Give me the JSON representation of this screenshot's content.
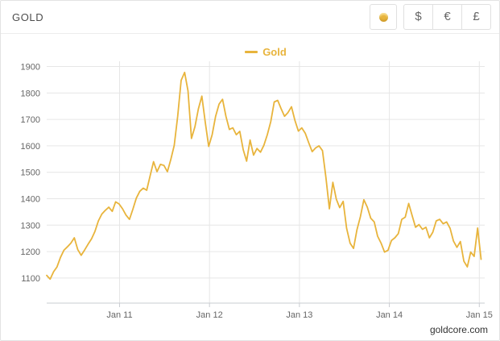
{
  "header": {
    "title": "GOLD",
    "currencies": [
      {
        "label": "$"
      },
      {
        "label": "€"
      },
      {
        "label": "£"
      }
    ]
  },
  "legend": {
    "label": "Gold"
  },
  "credit": "goldcore.com",
  "colors": {
    "gold": "#e8b43c",
    "grid": "#e6e6e6",
    "axis_label": "#666666",
    "axis_line": "#c9ccd1",
    "btn_border": "#e0e0e0"
  },
  "chart_data": {
    "type": "line",
    "title": "",
    "xlabel": "",
    "ylabel": "",
    "grid": true,
    "legend_position": "top-center",
    "xlim": [
      2010.19,
      2015.06
    ],
    "ylim": [
      1005,
      1920
    ],
    "y_ticks": [
      1100,
      1200,
      1300,
      1400,
      1500,
      1600,
      1700,
      1800,
      1900
    ],
    "x_ticks": [
      {
        "value": 2011,
        "label": "Jan 11"
      },
      {
        "value": 2012,
        "label": "Jan 12"
      },
      {
        "value": 2013,
        "label": "Jan 13"
      },
      {
        "value": 2014,
        "label": "Jan 14"
      },
      {
        "value": 2015,
        "label": "Jan 15"
      }
    ],
    "series": [
      {
        "name": "Gold",
        "color": "#e8b43c",
        "x_start": 2010.19,
        "x_step_years": 0.03833,
        "values": [
          1110,
          1096,
          1124,
          1142,
          1178,
          1205,
          1218,
          1232,
          1252,
          1208,
          1186,
          1206,
          1228,
          1248,
          1276,
          1316,
          1342,
          1356,
          1368,
          1352,
          1388,
          1380,
          1362,
          1338,
          1322,
          1360,
          1402,
          1428,
          1440,
          1432,
          1486,
          1540,
          1502,
          1530,
          1526,
          1502,
          1548,
          1602,
          1712,
          1848,
          1878,
          1808,
          1628,
          1672,
          1740,
          1788,
          1688,
          1598,
          1642,
          1712,
          1758,
          1776,
          1712,
          1662,
          1668,
          1642,
          1655,
          1585,
          1542,
          1622,
          1565,
          1590,
          1576,
          1602,
          1642,
          1692,
          1766,
          1772,
          1740,
          1712,
          1726,
          1748,
          1696,
          1656,
          1668,
          1648,
          1612,
          1578,
          1592,
          1600,
          1582,
          1480,
          1362,
          1462,
          1398,
          1366,
          1390,
          1288,
          1232,
          1212,
          1282,
          1332,
          1396,
          1368,
          1326,
          1312,
          1258,
          1232,
          1198,
          1205,
          1242,
          1252,
          1268,
          1322,
          1330,
          1382,
          1336,
          1292,
          1302,
          1284,
          1292,
          1252,
          1273,
          1316,
          1322,
          1305,
          1312,
          1288,
          1240,
          1216,
          1238,
          1164,
          1142,
          1198,
          1182,
          1289,
          1171
        ]
      }
    ]
  }
}
